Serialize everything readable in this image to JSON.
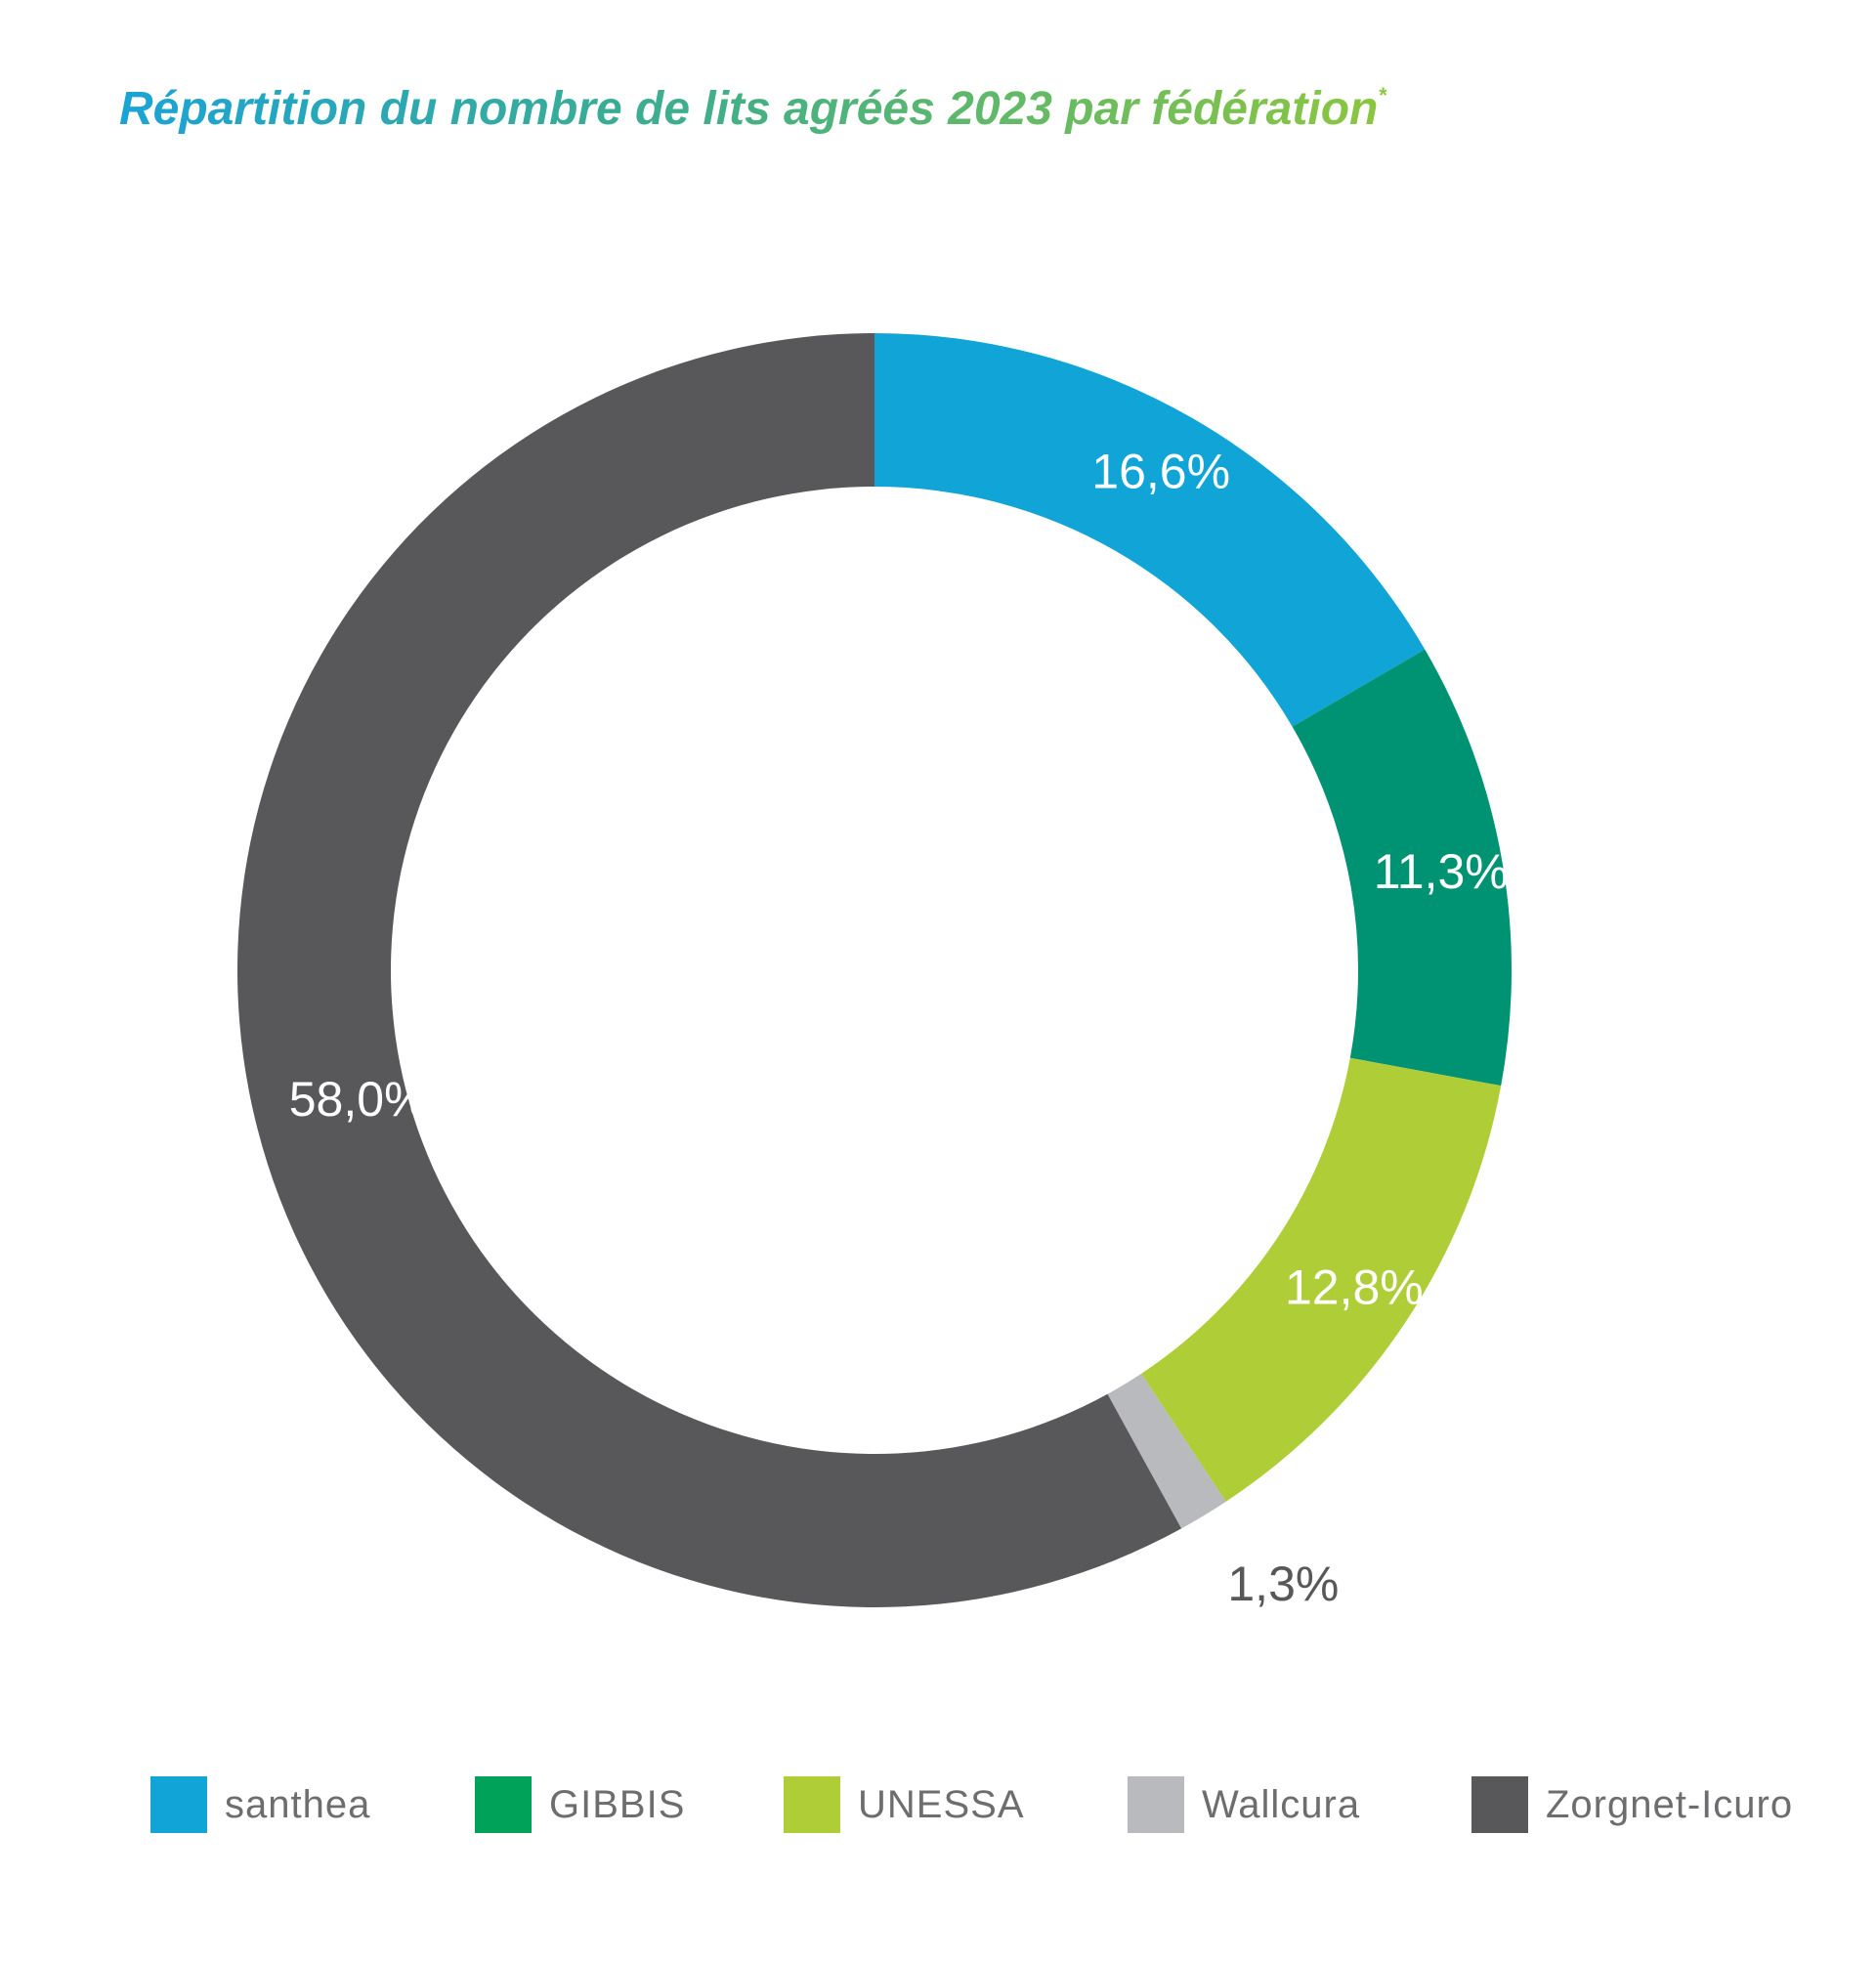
{
  "title": "Répartition du nombre de lits agréés 2023 par fédération",
  "title_mark": "*",
  "chart_data": {
    "type": "pie",
    "variant": "donut",
    "title": "Répartition du nombre de lits agréés 2023 par fédération",
    "unit": "%",
    "start": "12 o'clock, clockwise",
    "legend_position": "bottom",
    "series": [
      {
        "name": "santhea",
        "value": 16.6,
        "label": "16,6%",
        "color": "#10a5d6",
        "label_color": "#ffffff"
      },
      {
        "name": "GIBBIS",
        "value": 11.3,
        "label": "11,3%",
        "color": "#009373",
        "label_color": "#ffffff"
      },
      {
        "name": "UNESSA",
        "value": 12.8,
        "label": "12,8%",
        "color": "#afcd37",
        "label_color": "#ffffff"
      },
      {
        "name": "Wallcura",
        "value": 1.3,
        "label": "1,3%",
        "color": "#b9babd",
        "label_color": "#58585a"
      },
      {
        "name": "Zorgnet-Icuro",
        "value": 58.0,
        "label": "58,0%",
        "color": "#58585a",
        "label_color": "#ffffff"
      }
    ]
  },
  "legend": {
    "items": [
      {
        "label": "santhea",
        "color": "#10a5d6"
      },
      {
        "label": "GIBBIS",
        "color": "#00a25a"
      },
      {
        "label": "UNESSA",
        "color": "#afcd37"
      },
      {
        "label": "Wallcura",
        "color": "#b9babd"
      },
      {
        "label": "Zorgnet-Icuro",
        "color": "#58585a"
      }
    ]
  }
}
